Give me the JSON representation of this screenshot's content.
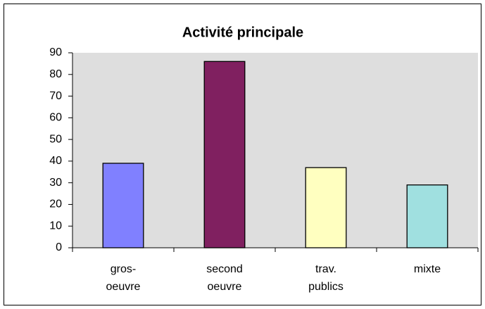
{
  "chart_data": {
    "type": "bar",
    "title": "Activité principale",
    "categories": [
      "gros-\noeuvre",
      "second\noeuvre",
      "trav.\npublics",
      "mixte"
    ],
    "values": [
      39,
      86,
      37,
      29
    ],
    "colors": [
      "#8080ff",
      "#802060",
      "#ffffc0",
      "#a0e0e0"
    ],
    "ylim": [
      0,
      90
    ],
    "yticks": [
      0,
      10,
      20,
      30,
      40,
      50,
      60,
      70,
      80,
      90
    ],
    "grid": false
  }
}
